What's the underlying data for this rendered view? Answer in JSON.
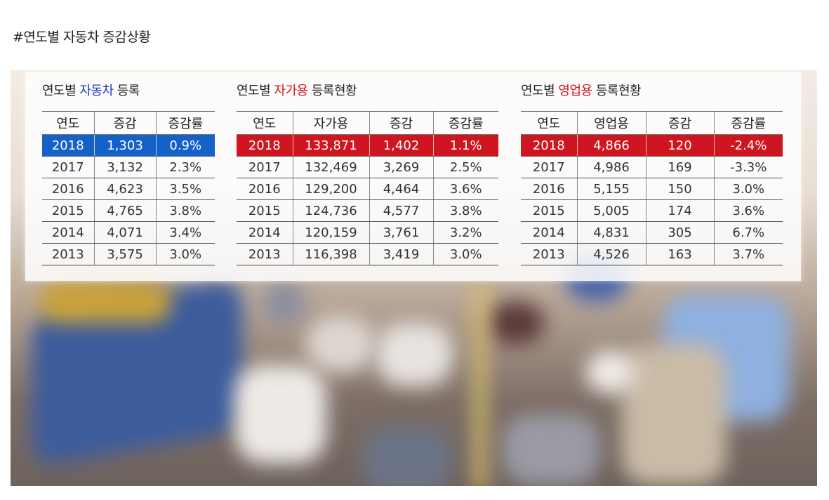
{
  "page_title": "#연도별 자동차 증감상황",
  "colors": {
    "highlight_blue": "#1462c7",
    "highlight_red": "#cf1520"
  },
  "tables": [
    {
      "title_prefix": "연도별",
      "title_highlight": "자동차",
      "title_suffix": "등록",
      "headers": [
        "연도",
        "증감",
        "증감률"
      ],
      "rows": [
        [
          "2018",
          "1,303",
          "0.9%"
        ],
        [
          "2017",
          "3,132",
          "2.3%"
        ],
        [
          "2016",
          "4,623",
          "3.5%"
        ],
        [
          "2015",
          "4,765",
          "3.8%"
        ],
        [
          "2014",
          "4,071",
          "3.4%"
        ],
        [
          "2013",
          "3,575",
          "3.0%"
        ]
      ]
    },
    {
      "title_prefix": "연도별",
      "title_highlight": "자가용",
      "title_suffix": "등록현황",
      "headers": [
        "연도",
        "자가용",
        "증감",
        "증감률"
      ],
      "rows": [
        [
          "2018",
          "133,871",
          "1,402",
          "1.1%"
        ],
        [
          "2017",
          "132,469",
          "3,269",
          "2.5%"
        ],
        [
          "2016",
          "129,200",
          "4,464",
          "3.6%"
        ],
        [
          "2015",
          "124,736",
          "4,577",
          "3.8%"
        ],
        [
          "2014",
          "120,159",
          "3,761",
          "3.2%"
        ],
        [
          "2013",
          "116,398",
          "3,419",
          "3.0%"
        ]
      ]
    },
    {
      "title_prefix": "연도별",
      "title_highlight": "영업용",
      "title_suffix": "등록현황",
      "headers": [
        "연도",
        "영업용",
        "증감",
        "증감률"
      ],
      "rows": [
        [
          "2018",
          "4,866",
          "120",
          "-2.4%"
        ],
        [
          "2017",
          "4,986",
          "169",
          "-3.3%"
        ],
        [
          "2016",
          "5,155",
          "150",
          "3.0%"
        ],
        [
          "2015",
          "5,005",
          "174",
          "3.6%"
        ],
        [
          "2014",
          "4,831",
          "305",
          "6.7%"
        ],
        [
          "2013",
          "4,526",
          "163",
          "3.7%"
        ]
      ]
    }
  ]
}
